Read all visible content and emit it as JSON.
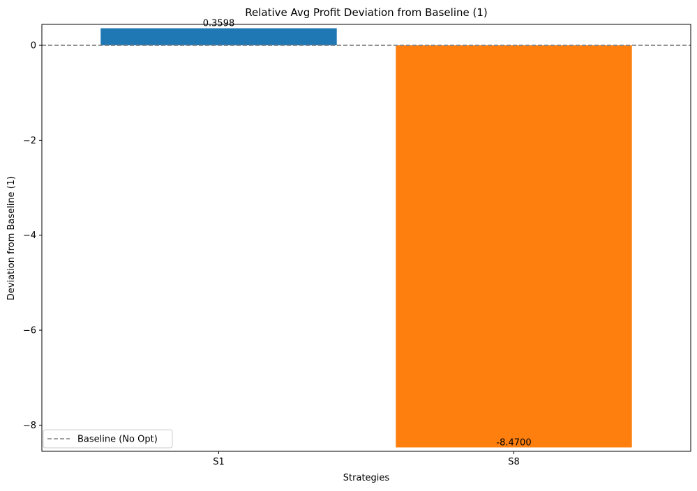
{
  "chart_data": {
    "type": "bar",
    "title": "Relative Avg Profit Deviation from Baseline (1)",
    "xlabel": "Strategies",
    "ylabel": "Deviation from Baseline (1)",
    "categories": [
      "S1",
      "S8"
    ],
    "values": [
      0.3598,
      -8.47
    ],
    "value_labels": [
      "0.3598",
      "-8.4700"
    ],
    "bar_colors": [
      "#1f77b4",
      "#ff7f0e"
    ],
    "ylim": [
      -8.5515,
      0.4413
    ],
    "yticks": [
      0,
      -2,
      -4,
      -6,
      -8
    ],
    "ytick_labels": [
      "0",
      "−2",
      "−4",
      "−6",
      "−8"
    ],
    "baseline": {
      "value": 0,
      "label": "Baseline (No Opt)",
      "color": "#808080",
      "style": "dashed"
    },
    "legend": {
      "position": "lower-left",
      "entries": [
        "Baseline (No Opt)"
      ]
    },
    "grid": false
  }
}
